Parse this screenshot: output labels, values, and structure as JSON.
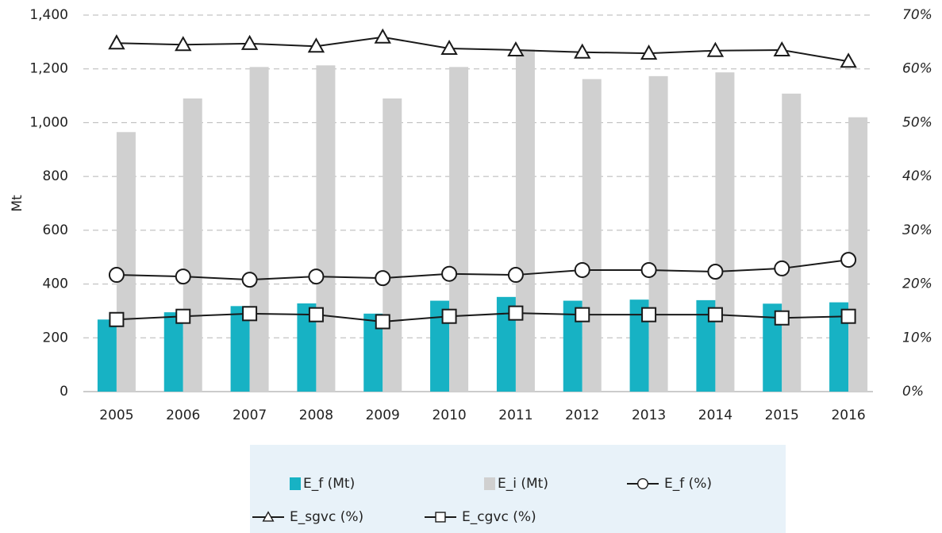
{
  "chart_data": {
    "type": "bar_line",
    "y_label": "Mt",
    "categories": [
      "2005",
      "2006",
      "2007",
      "2008",
      "2009",
      "2010",
      "2011",
      "2012",
      "2013",
      "2014",
      "2015",
      "2016"
    ],
    "series": [
      {
        "name": "E_f (Mt)",
        "type": "bar",
        "color": "#17b2c4",
        "values": [
          268,
          295,
          318,
          328,
          290,
          338,
          352,
          338,
          342,
          340,
          327,
          332
        ]
      },
      {
        "name": "E_i (Mt)",
        "type": "bar",
        "color": "#d0d0d0",
        "values": [
          965,
          1090,
          1207,
          1213,
          1090,
          1207,
          1272,
          1162,
          1173,
          1187,
          1108,
          1020
        ]
      },
      {
        "name": "E_f (%)",
        "type": "line",
        "axis": "y2",
        "marker": "circle",
        "color": "#1a1a1a",
        "values": [
          21.7,
          21.4,
          20.8,
          21.4,
          21.1,
          21.9,
          21.7,
          22.6,
          22.6,
          22.3,
          22.9,
          24.5
        ]
      },
      {
        "name": "E_sgvc (%)",
        "type": "line",
        "axis": "y2",
        "marker": "triangle",
        "color": "#1a1a1a",
        "values": [
          64.8,
          64.5,
          64.7,
          64.2,
          65.9,
          63.8,
          63.5,
          63.1,
          62.9,
          63.4,
          63.5,
          61.4
        ]
      },
      {
        "name": "E_cgvc (%)",
        "type": "line",
        "axis": "y2",
        "marker": "square",
        "color": "#1a1a1a",
        "values": [
          13.4,
          14.0,
          14.5,
          14.3,
          13.0,
          14.0,
          14.6,
          14.3,
          14.3,
          14.3,
          13.7,
          14.0
        ]
      }
    ],
    "ylim": [
      0,
      1400
    ],
    "yticks": [
      0,
      200,
      400,
      600,
      800,
      {
        "value": 1000,
        "label": "1,000"
      },
      {
        "value": 1200,
        "label": "1,200"
      },
      {
        "value": 1400,
        "label": "1,400"
      }
    ],
    "y2lim": [
      0,
      70
    ],
    "y2ticks": [
      {
        "value": 0,
        "label": "0%"
      },
      {
        "value": 10,
        "label": "10%"
      },
      {
        "value": 20,
        "label": "20%"
      },
      {
        "value": 30,
        "label": "30%"
      },
      {
        "value": 40,
        "label": "40%"
      },
      {
        "value": 50,
        "label": "50%"
      },
      {
        "value": 60,
        "label": "60%"
      },
      {
        "value": 70,
        "label": "70%"
      }
    ],
    "grid": true,
    "legend": "bottom"
  }
}
